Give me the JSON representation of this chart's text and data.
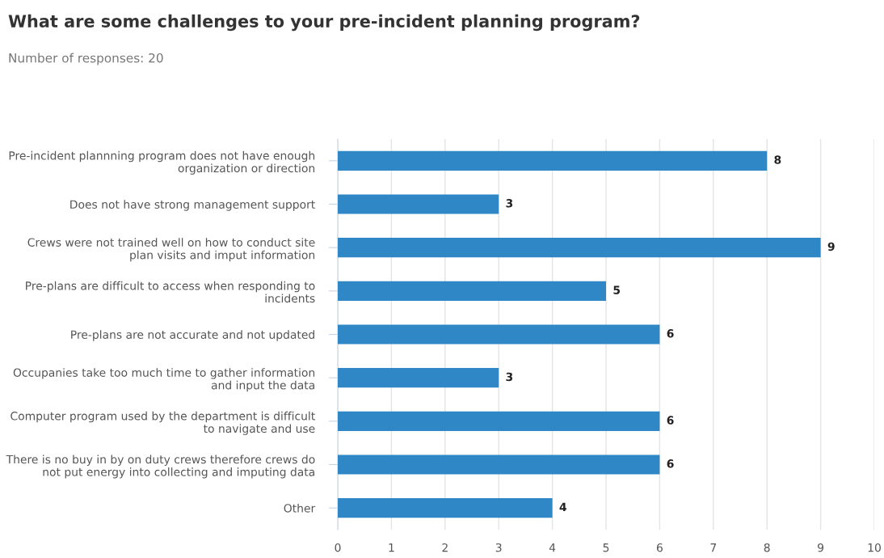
{
  "chart_data": {
    "type": "bar",
    "orientation": "horizontal",
    "title": "What are some challenges to your pre-incident planning program?",
    "subtitle": "Number of responses: 20",
    "categories": [
      "Pre-incident plannning program does not have enough\norganization or direction",
      "Does not have strong management support",
      "Crews were not trained well on how to conduct site\nplan visits and imput information",
      "Pre-plans are difficult to access when responding to\nincidents",
      "Pre-plans are not accurate and not updated",
      "Occupanies take too much time to gather information\nand input the data",
      "Computer program used by the department is difficult\nto navigate and use",
      "There is no buy in by on duty crews therefore crews do\nnot put energy into collecting and imputing data",
      "Other"
    ],
    "values": [
      8,
      3,
      9,
      5,
      6,
      3,
      6,
      6,
      4
    ],
    "color": "#3087c6",
    "xlim": [
      0,
      10
    ],
    "xticks": [
      0,
      1,
      2,
      3,
      4,
      5,
      6,
      7,
      8,
      9,
      10
    ],
    "grid": "x",
    "data_labels": true,
    "legend": false
  }
}
